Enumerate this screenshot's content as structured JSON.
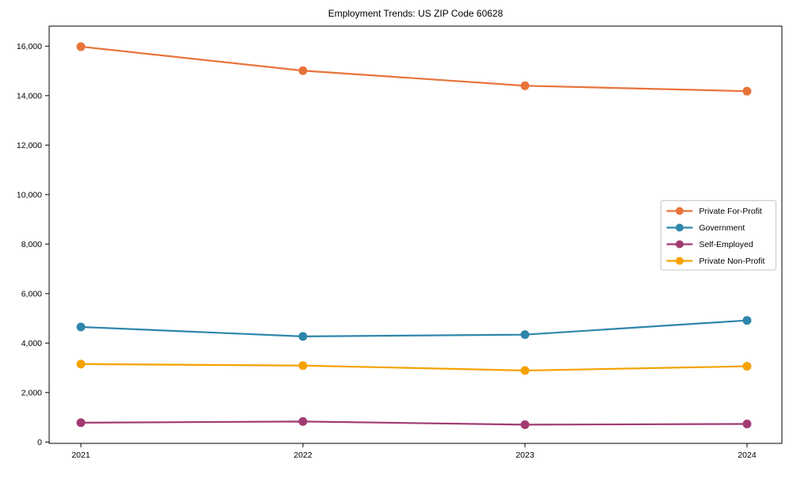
{
  "title": "Employment Trends: US ZIP Code 60628",
  "chart_data": {
    "type": "line",
    "title": "Employment Trends: US ZIP Code 60628",
    "xlabel": "",
    "ylabel": "",
    "x": [
      "2021",
      "2022",
      "2023",
      "2024"
    ],
    "series": [
      {
        "name": "Private For-Profit",
        "color": "#E8743B",
        "values": [
          15980,
          15010,
          14400,
          14180
        ]
      },
      {
        "name": "Government",
        "color": "#2E86AB",
        "values": [
          4650,
          4270,
          4340,
          4915
        ]
      },
      {
        "name": "Self-Employed",
        "color": "#A23B72",
        "values": [
          780,
          830,
          700,
          730
        ]
      },
      {
        "name": "Private Non-Profit",
        "color": "#F5A201",
        "values": [
          3150,
          3090,
          2890,
          3060
        ]
      }
    ],
    "ylim": [
      -55,
      16810
    ],
    "yticks": [
      0,
      2000,
      4000,
      6000,
      8000,
      10000,
      12000,
      14000,
      16000
    ],
    "grid": false,
    "frame": true,
    "legend_position": "center-right",
    "marker": "circle"
  }
}
